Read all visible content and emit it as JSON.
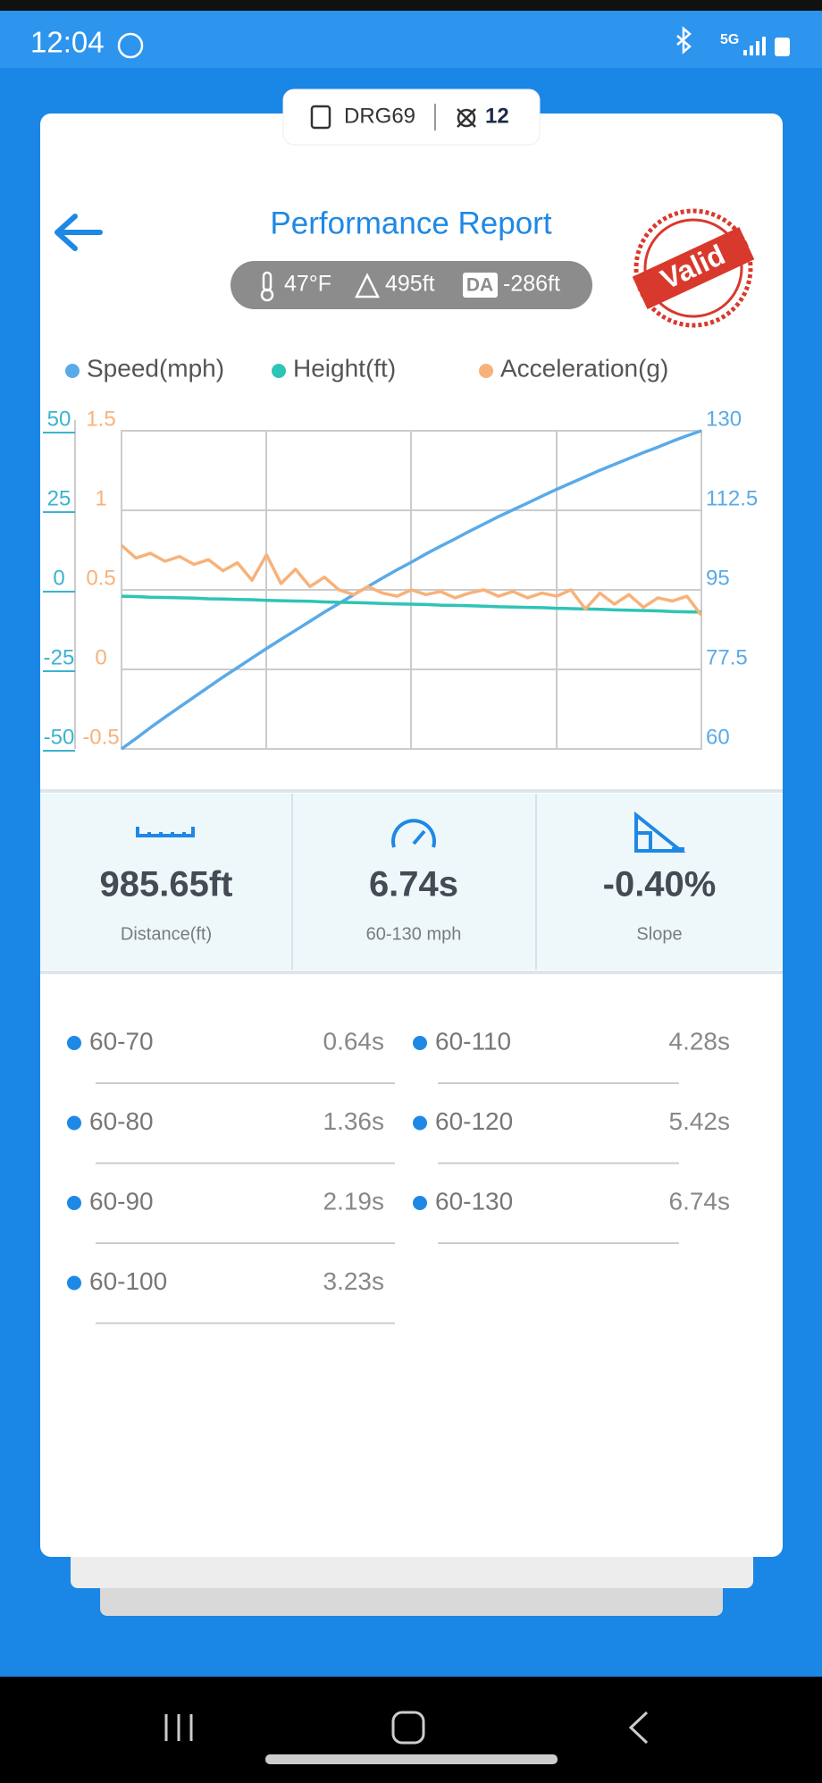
{
  "status_bar": {
    "time": "12:04",
    "network": "5G"
  },
  "device": {
    "name": "DRG69",
    "satellites": "12"
  },
  "header": {
    "title": "Performance Report",
    "temperature": "47°F",
    "altitude": "495ft",
    "density_altitude_label": "DA",
    "density_altitude": "-286ft",
    "stamp": "Valid"
  },
  "chart_data": {
    "type": "line",
    "grid": true,
    "ylim": [
      -50,
      50
    ],
    "yticks": [
      -50,
      -25,
      0,
      25,
      50
    ],
    "y3lim": [
      -0.5,
      1.5
    ],
    "y3ticks": [
      -0.5,
      0,
      0.5,
      1,
      1.5
    ],
    "y2lim": [
      60,
      130
    ],
    "y2ticks": [
      60,
      77.5,
      95,
      112.5,
      130
    ],
    "series": [
      {
        "name": "Speed(mph)",
        "color": "#5aaae8",
        "axis": "y2",
        "values": [
          60,
          62.3,
          64.7,
          67,
          69.2,
          71.4,
          73.6,
          75.8,
          77.9,
          80,
          82.1,
          84.1,
          86.1,
          88.1,
          90.1,
          92,
          93.9,
          95.7,
          97.6,
          99.4,
          101.1,
          102.9,
          104.6,
          106.2,
          107.9,
          109.5,
          111.1,
          112.6,
          114.1,
          115.6,
          117.1,
          118.5,
          119.9,
          121.3,
          122.6,
          123.9,
          125.2,
          126.4,
          127.7,
          128.9,
          130
        ]
      },
      {
        "name": "Height(ft)",
        "color": "#2ec4b6",
        "values": [
          -2,
          -2.1,
          -2.3,
          -2.4,
          -2.5,
          -2.6,
          -2.8,
          -2.9,
          -3,
          -3.1,
          -3.3,
          -3.4,
          -3.5,
          -3.6,
          -3.8,
          -3.9,
          -4,
          -4.1,
          -4.3,
          -4.4,
          -4.5,
          -4.6,
          -4.8,
          -4.9,
          -5,
          -5.1,
          -5.3,
          -5.4,
          -5.5,
          -5.6,
          -5.8,
          -5.9,
          -6,
          -6.1,
          -6.3,
          -6.4,
          -6.5,
          -6.6,
          -6.8,
          -6.9,
          -7
        ]
      },
      {
        "name": "Acceleration(g)",
        "color": "#f7b27a",
        "axis": "y3",
        "values": [
          0.78,
          0.7,
          0.73,
          0.68,
          0.71,
          0.66,
          0.69,
          0.62,
          0.67,
          0.56,
          0.72,
          0.54,
          0.63,
          0.52,
          0.58,
          0.5,
          0.47,
          0.52,
          0.48,
          0.46,
          0.5,
          0.47,
          0.49,
          0.45,
          0.48,
          0.5,
          0.46,
          0.49,
          0.45,
          0.48,
          0.46,
          0.5,
          0.38,
          0.48,
          0.41,
          0.47,
          0.39,
          0.45,
          0.43,
          0.46,
          0.34
        ]
      }
    ],
    "tick_colors": {
      "y": "#3ab3cf",
      "y3": "#f7b27a",
      "y2": "#5aaae8"
    }
  },
  "summary": [
    {
      "value": "985.65ft",
      "label": "Distance(ft)"
    },
    {
      "value": "6.74s",
      "label": "60-130 mph"
    },
    {
      "value": "-0.40%",
      "label": "Slope"
    }
  ],
  "splits": [
    {
      "range": "60-70",
      "time": "0.64s"
    },
    {
      "range": "60-80",
      "time": "1.36s"
    },
    {
      "range": "60-90",
      "time": "2.19s"
    },
    {
      "range": "60-100",
      "time": "3.23s"
    },
    {
      "range": "60-110",
      "time": "4.28s"
    },
    {
      "range": "60-120",
      "time": "5.42s"
    },
    {
      "range": "60-130",
      "time": "6.74s"
    }
  ]
}
